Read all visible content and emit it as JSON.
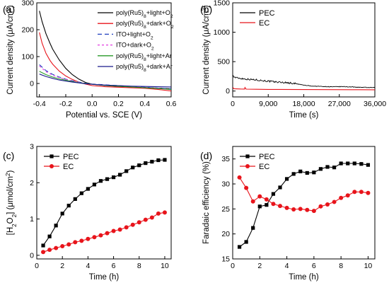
{
  "chart_data": [
    {
      "panel": "(a)",
      "type": "line",
      "xlabel": "Potential vs. SCE (V)",
      "ylabel": "Current density (μA/cm²)",
      "xlim": [
        -0.42,
        0.6
      ],
      "ylim": [
        -50,
        300
      ],
      "xticks": [
        -0.4,
        -0.2,
        0.0,
        0.2,
        0.4,
        0.6
      ],
      "xtick_labels": [
        "-0.4",
        "-0.2",
        "0.0",
        "0.2",
        "0.4",
        "0.6"
      ],
      "yticks": [
        0,
        100,
        200,
        300
      ],
      "ytick_labels": [
        "0",
        "100",
        "200",
        "300"
      ],
      "legend_position": "top-right",
      "series": [
        {
          "name": "poly(Ru5)8+light+O2",
          "color": "#000000",
          "dash": "solid",
          "x": [
            -0.4,
            -0.38,
            -0.35,
            -0.32,
            -0.3,
            -0.25,
            -0.2,
            -0.15,
            -0.1,
            -0.05,
            0.0,
            0.1,
            0.2,
            0.3,
            0.4,
            0.5,
            0.6
          ],
          "y": [
            270,
            230,
            185,
            150,
            128,
            88,
            56,
            33,
            16,
            4,
            -3,
            -8,
            -11,
            -13,
            -15,
            -17,
            -20
          ]
        },
        {
          "name": "poly(Ru5)8+dark+O2",
          "color": "#e8141b",
          "dash": "solid",
          "x": [
            -0.4,
            -0.38,
            -0.35,
            -0.32,
            -0.3,
            -0.25,
            -0.2,
            -0.15,
            -0.1,
            -0.05,
            0.0,
            0.1,
            0.2,
            0.3,
            0.4,
            0.5,
            0.6
          ],
          "y": [
            190,
            150,
            112,
            86,
            72,
            46,
            28,
            15,
            5,
            -2,
            -8,
            -12,
            -14,
            -16,
            -18,
            -22,
            -28
          ]
        },
        {
          "name": "ITO+light+O2",
          "color": "#1f3fbf",
          "dash": "6,4",
          "x": [
            -0.4,
            -0.35,
            -0.3,
            -0.25,
            -0.2,
            -0.15,
            -0.1,
            -0.05,
            0.0,
            0.1,
            0.2,
            0.3,
            0.4,
            0.5,
            0.6
          ],
          "y": [
            70,
            48,
            34,
            24,
            16,
            10,
            5,
            1,
            -2,
            -5,
            -8,
            -11,
            -14,
            -17,
            -20
          ]
        },
        {
          "name": "ITO+dark+O2",
          "color": "#e23be0",
          "dash": "3,3",
          "x": [
            -0.4,
            -0.35,
            -0.3,
            -0.25,
            -0.2,
            -0.15,
            -0.1,
            -0.05,
            0.0,
            0.1,
            0.2,
            0.3,
            0.4,
            0.5,
            0.6
          ],
          "y": [
            65,
            44,
            31,
            22,
            15,
            9,
            4,
            0,
            -3,
            -6,
            -9,
            -12,
            -15,
            -18,
            -22
          ]
        },
        {
          "name": "poly(Ru5)8+light+Ar",
          "color": "#2a9a2a",
          "dash": "solid",
          "x": [
            -0.4,
            -0.35,
            -0.3,
            -0.25,
            -0.2,
            -0.15,
            -0.1,
            -0.05,
            0.0,
            0.1,
            0.2,
            0.3,
            0.4,
            0.5,
            0.6
          ],
          "y": [
            45,
            33,
            24,
            17,
            12,
            7,
            3,
            0,
            -3,
            -7,
            -10,
            -13,
            -16,
            -19,
            -22
          ]
        },
        {
          "name": "poly(Ru5)8+dark+Ar",
          "color": "#1a1a8c",
          "dash": "solid",
          "x": [
            -0.4,
            -0.35,
            -0.3,
            -0.25,
            -0.2,
            -0.15,
            -0.1,
            -0.05,
            0.0,
            0.1,
            0.2,
            0.3,
            0.4,
            0.5,
            0.6
          ],
          "y": [
            35,
            26,
            19,
            13,
            9,
            5,
            2,
            -1,
            -3,
            -6,
            -8,
            -10,
            -11,
            -12,
            -13
          ]
        }
      ]
    },
    {
      "panel": "(b)",
      "type": "line",
      "xlabel": "Time (s)",
      "ylabel": "Current density (μA/cm²)",
      "xlim": [
        0,
        36000
      ],
      "ylim": [
        -100,
        1500
      ],
      "xticks": [
        0,
        9000,
        18000,
        27000,
        36000
      ],
      "xtick_labels": [
        "0",
        "9,000",
        "18,000",
        "27,000",
        "36,000"
      ],
      "yticks": [
        0,
        500,
        1000,
        1500
      ],
      "ytick_labels": [
        "0",
        "500",
        "1000",
        "1500"
      ],
      "legend_position": "top-left",
      "series": [
        {
          "name": "PEC",
          "color": "#000000",
          "noise": true,
          "x": [
            0,
            300,
            1000,
            2000,
            4000,
            6000,
            8000,
            10000,
            12000,
            14000,
            16000,
            18000,
            20000,
            22000,
            25000,
            28000,
            30000,
            33000,
            36000
          ],
          "y": [
            270,
            240,
            225,
            215,
            200,
            190,
            175,
            160,
            150,
            140,
            125,
            100,
            85,
            80,
            72,
            75,
            70,
            62,
            58
          ]
        },
        {
          "name": "EC",
          "color": "#e8141b",
          "noise": false,
          "x": [
            0,
            300,
            2000,
            3000,
            3100,
            3400,
            6000,
            9000,
            12000,
            18000,
            24000,
            30000,
            36000
          ],
          "y": [
            65,
            40,
            35,
            33,
            60,
            32,
            30,
            28,
            27,
            25,
            24,
            23,
            22
          ]
        }
      ]
    },
    {
      "panel": "(c)",
      "type": "line",
      "xlabel": "Time (h)",
      "ylabel": "[H₂O₂] (μmol/cm²)",
      "xlim": [
        0,
        10.5
      ],
      "ylim": [
        -0.1,
        3.0
      ],
      "xticks": [
        0,
        2,
        4,
        6,
        8,
        10
      ],
      "xtick_labels": [
        "0",
        "2",
        "4",
        "6",
        "8",
        "10"
      ],
      "yticks": [
        0,
        1,
        2,
        3
      ],
      "ytick_labels": [
        "0",
        "1",
        "2",
        "3"
      ],
      "legend_position": "top-left",
      "series": [
        {
          "name": "PEC",
          "color": "#000000",
          "marker": "square",
          "x": [
            0.5,
            1,
            1.5,
            2,
            2.5,
            3,
            3.5,
            4,
            4.5,
            5,
            5.5,
            6,
            6.5,
            7,
            7.5,
            8,
            8.5,
            9,
            9.5,
            10
          ],
          "y": [
            0.27,
            0.52,
            0.82,
            1.15,
            1.37,
            1.55,
            1.71,
            1.83,
            1.95,
            2.05,
            2.1,
            2.15,
            2.22,
            2.32,
            2.42,
            2.48,
            2.54,
            2.58,
            2.62,
            2.63
          ]
        },
        {
          "name": "EC",
          "color": "#e8141b",
          "marker": "circle",
          "x": [
            0.5,
            1,
            1.5,
            2,
            2.5,
            3,
            3.5,
            4,
            4.5,
            5,
            5.5,
            6,
            6.5,
            7,
            7.5,
            8,
            8.5,
            9,
            9.5,
            10
          ],
          "y": [
            0.09,
            0.15,
            0.2,
            0.25,
            0.3,
            0.36,
            0.4,
            0.45,
            0.5,
            0.55,
            0.61,
            0.67,
            0.71,
            0.77,
            0.84,
            0.91,
            0.98,
            1.04,
            1.15,
            1.18
          ]
        }
      ]
    },
    {
      "panel": "(d)",
      "type": "line",
      "xlabel": "Time (h)",
      "ylabel": "Faradaic efficiency (%)",
      "xlim": [
        0,
        10.5
      ],
      "ylim": [
        15,
        37.5
      ],
      "xticks": [
        0,
        2,
        4,
        6,
        8,
        10
      ],
      "xtick_labels": [
        "0",
        "2",
        "4",
        "6",
        "8",
        "10"
      ],
      "yticks": [
        15,
        20,
        25,
        30,
        35
      ],
      "ytick_labels": [
        "15",
        "20",
        "25",
        "30",
        "35"
      ],
      "legend_position": "top-left",
      "series": [
        {
          "name": "PEC",
          "color": "#000000",
          "marker": "square",
          "x": [
            0.5,
            1,
            1.5,
            2,
            2.5,
            3,
            3.5,
            4,
            4.5,
            5,
            5.5,
            6,
            6.5,
            7,
            7.5,
            8,
            8.5,
            9,
            9.5,
            10
          ],
          "y": [
            17.4,
            18.4,
            21.2,
            25.5,
            25.8,
            28.0,
            29.3,
            31.0,
            32.0,
            32.5,
            32.2,
            32.3,
            33.0,
            33.4,
            33.3,
            34.1,
            34.1,
            34.1,
            34.0,
            33.8
          ]
        },
        {
          "name": "EC",
          "color": "#e8141b",
          "marker": "circle",
          "x": [
            0.5,
            1,
            1.5,
            2,
            2.5,
            3,
            3.5,
            4,
            4.5,
            5,
            5.5,
            6,
            6.5,
            7,
            7.5,
            8,
            8.5,
            9,
            9.5,
            10
          ],
          "y": [
            31.3,
            29.2,
            26.5,
            27.5,
            26.9,
            26.0,
            25.6,
            25.2,
            24.9,
            25.0,
            24.8,
            24.6,
            25.5,
            25.9,
            26.4,
            27.2,
            27.7,
            28.4,
            28.4,
            28.2
          ]
        }
      ]
    }
  ]
}
